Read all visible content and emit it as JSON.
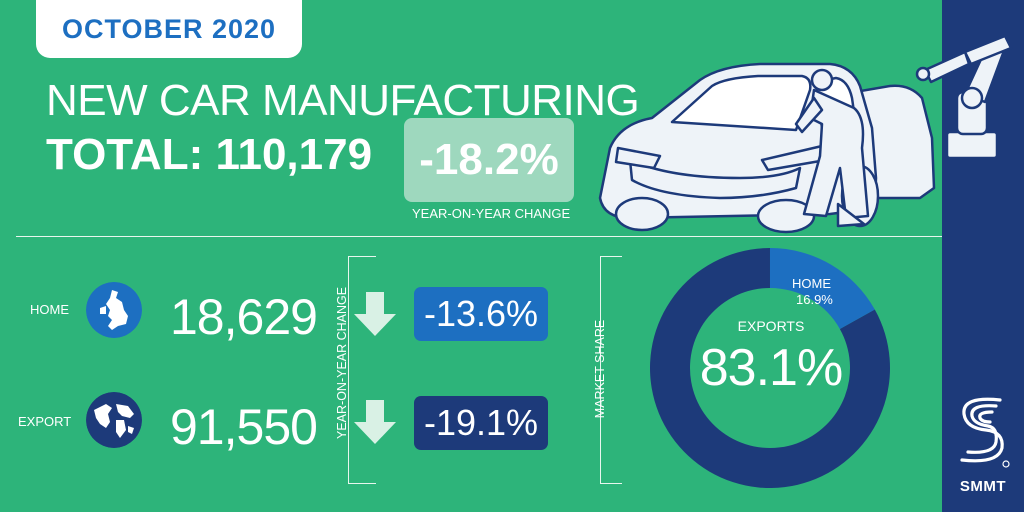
{
  "header": {
    "date": "OCTOBER 2020",
    "title": "NEW CAR MANUFACTURING",
    "total": "TOTAL: 110,179",
    "yoy_value": "-18.2%",
    "yoy_caption": "YEAR-ON-YEAR CHANGE"
  },
  "breakdown": {
    "yoy_label": "YEAR-ON-YEAR CHANGE",
    "home": {
      "label": "HOME",
      "value": "18,629",
      "change": "-13.6%",
      "icon": "uk-map-icon"
    },
    "export": {
      "label": "EXPORT",
      "value": "91,550",
      "change": "-19.1%",
      "icon": "world-globe-icon"
    }
  },
  "market_share": {
    "label": "MARKET SHARE",
    "exports_label": "EXPORTS",
    "exports_value": "83.1%",
    "home_label": "HOME",
    "home_value": "16.9%",
    "exports_pct": 83.1,
    "home_pct": 16.9
  },
  "brand": {
    "name": "SMMT"
  },
  "colors": {
    "background": "#2db47a",
    "navy": "#1d3a7a",
    "blue": "#1d6fc1",
    "light_green": "#9ed8be"
  }
}
